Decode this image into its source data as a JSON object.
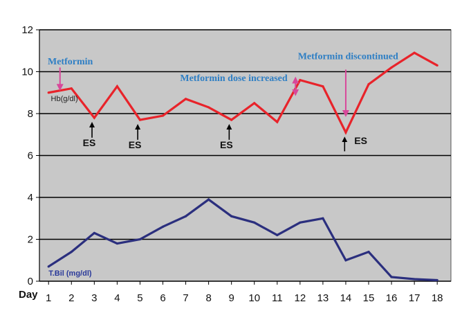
{
  "chart_data": {
    "type": "line",
    "xlabel": "Day",
    "x": [
      1,
      2,
      3,
      4,
      5,
      6,
      7,
      8,
      9,
      10,
      11,
      12,
      13,
      14,
      15,
      16,
      17,
      18
    ],
    "xlim": [
      0.6,
      18.6
    ],
    "ylim": [
      0,
      12
    ],
    "yticks": [
      0,
      2,
      4,
      6,
      8,
      10,
      12
    ],
    "grid": true,
    "background": "#c8c8c8",
    "series": [
      {
        "name": "Hb(g/dl)",
        "color": "#e8232a",
        "values": [
          9.0,
          9.2,
          7.8,
          9.3,
          7.7,
          7.9,
          8.7,
          8.3,
          7.7,
          8.5,
          7.6,
          9.6,
          9.3,
          7.1,
          9.4,
          10.2,
          10.9,
          10.3
        ]
      },
      {
        "name": "T.Bil (mg/dl)",
        "color": "#2b2f7e",
        "values": [
          0.7,
          1.4,
          2.3,
          1.8,
          2.0,
          2.6,
          3.1,
          3.9,
          3.1,
          2.8,
          2.2,
          2.8,
          3.0,
          1.0,
          1.4,
          0.2,
          0.1,
          0.05
        ]
      }
    ],
    "annotations": [
      {
        "text": "Metformin",
        "x": 1.5,
        "arrow_from": 10.2,
        "arrow_to": 9.15,
        "arrow_color": "#d8489a",
        "kind": "down"
      },
      {
        "text": "Metformin dose increased",
        "x": 11.8,
        "arrow_from": 8.9,
        "arrow_to": 9.7,
        "arrow_color": "#d8489a",
        "kind": "double"
      },
      {
        "text": "Metformin discontinued",
        "x": 14.0,
        "arrow_from": 10.1,
        "arrow_to": 7.9,
        "arrow_color": "#d8489a",
        "kind": "down"
      }
    ],
    "events": [
      {
        "label": "ES",
        "x": 2.9
      },
      {
        "label": "ES",
        "x": 4.9
      },
      {
        "label": "ES",
        "x": 8.9
      },
      {
        "label": "ES",
        "x": 13.95
      }
    ]
  }
}
